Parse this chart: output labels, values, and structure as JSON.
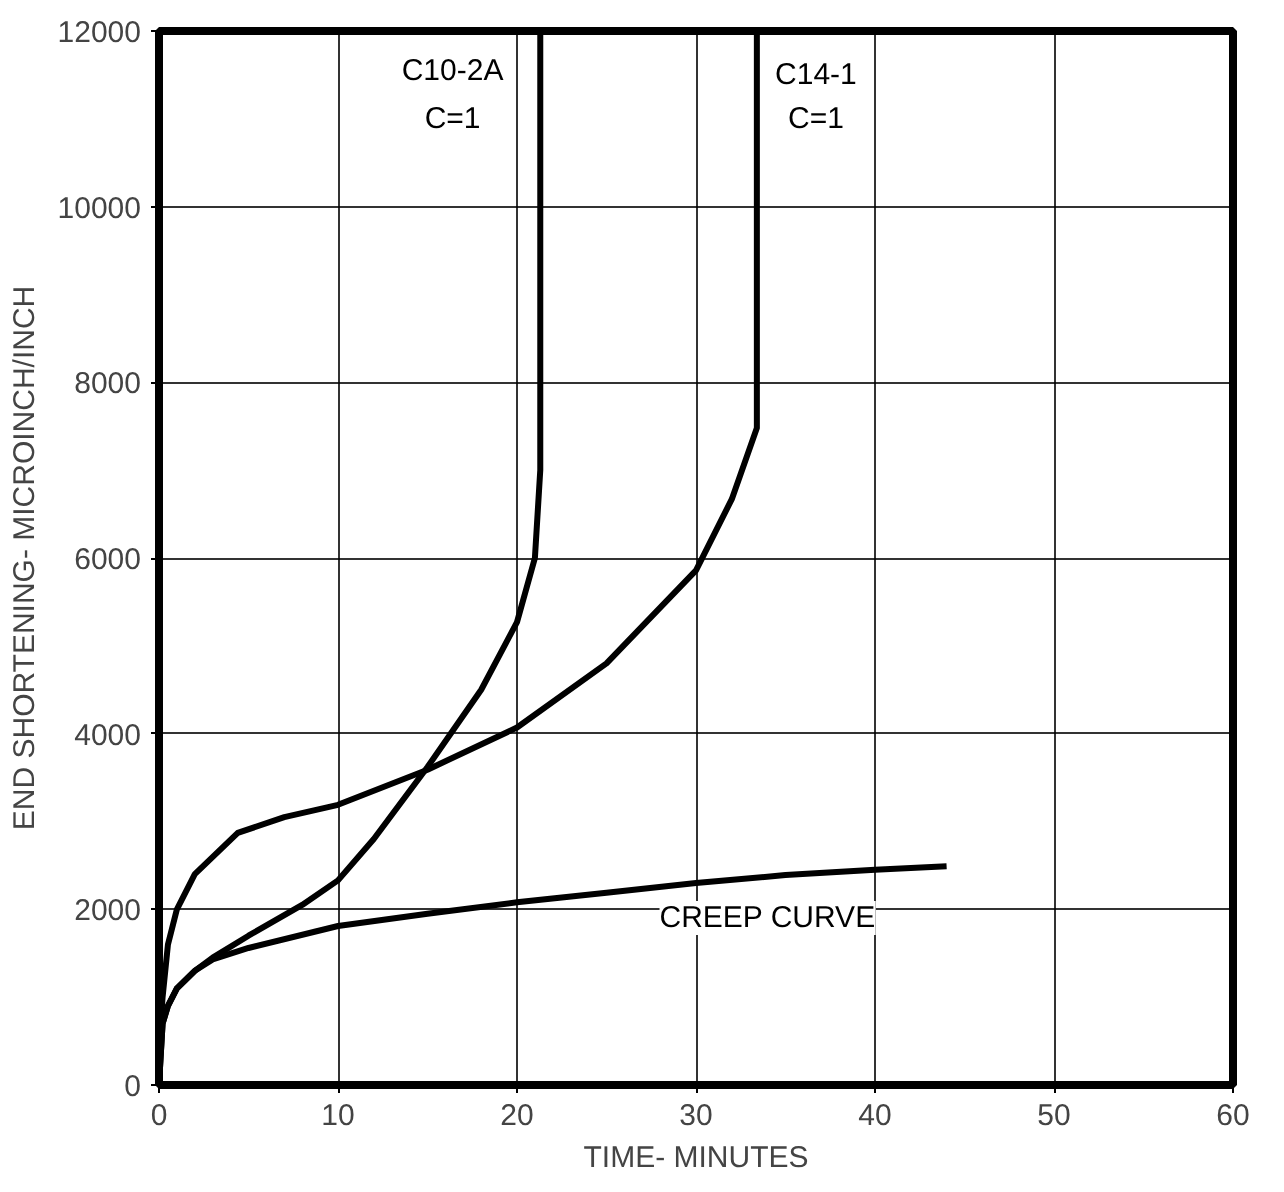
{
  "chart_data": {
    "type": "line",
    "xlabel": "TIME- MINUTES",
    "ylabel": "END SHORTENING- MICROINCH/INCH",
    "xlim": [
      0,
      60
    ],
    "ylim": [
      0,
      12000
    ],
    "xticks": [
      0,
      10,
      20,
      30,
      40,
      50,
      60
    ],
    "yticks": [
      0,
      2000,
      4000,
      6000,
      8000,
      10000,
      12000
    ],
    "grid": true,
    "line_style": "solid",
    "marker": "none",
    "series": [
      {
        "color": "#000000",
        "x": [
          0,
          0.2,
          0.5,
          1,
          2,
          3,
          5,
          10,
          15,
          20,
          25,
          30,
          35,
          40,
          44
        ],
        "values": [
          0,
          700,
          900,
          1100,
          1300,
          1430,
          1560,
          1810,
          1950,
          2080,
          2190,
          2300,
          2390,
          2450,
          2490
        ]
      },
      {
        "color": "#000000",
        "x": [
          0,
          0.2,
          0.5,
          1,
          2,
          3,
          5,
          8,
          10,
          12,
          15,
          18,
          20,
          21,
          21.3,
          21.3
        ],
        "values": [
          0,
          700,
          900,
          1100,
          1300,
          1450,
          1700,
          2050,
          2330,
          2800,
          3620,
          4500,
          5270,
          6000,
          7000,
          12000
        ]
      },
      {
        "color": "#000000",
        "x": [
          0,
          0.1,
          0.2,
          0.5,
          1,
          2,
          4.4,
          7,
          10,
          15,
          20,
          25,
          30,
          32,
          33.4,
          33.4
        ],
        "values": [
          0,
          700,
          1000,
          1600,
          2000,
          2400,
          2870,
          3050,
          3190,
          3590,
          4070,
          4800,
          5860,
          6670,
          7480,
          12000
        ]
      }
    ],
    "annotations": [
      "C10-2A",
      "C=1",
      "C14-1",
      "C=1",
      "CREEP CURVE"
    ]
  }
}
